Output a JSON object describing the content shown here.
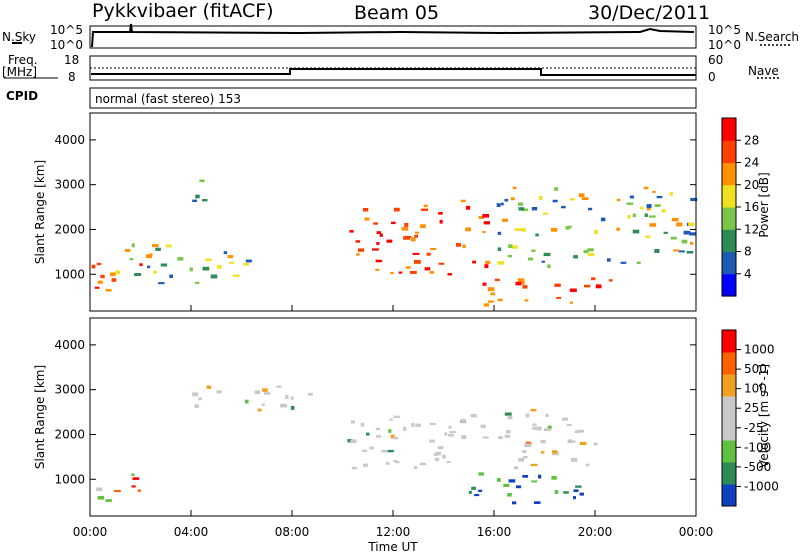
{
  "header": {
    "station": "Pykkvibaer (fitACF)",
    "beam": "Beam 05",
    "date": "30/Dec/2011"
  },
  "top_panels": {
    "nsky_label": "N.Sky",
    "nsky_ticks": [
      "10^5",
      "10^0"
    ],
    "nsearch_label": "N.Search",
    "nsearch_ticks": [
      "10^5",
      "10^0"
    ],
    "freq_label_1": "Freq.",
    "freq_label_2": "[MHz]",
    "freq_ticks": [
      "18",
      "8"
    ],
    "nave_label": "Nave",
    "nave_ticks": [
      "60",
      "0"
    ],
    "cpid_label": "CPID",
    "cpid_text": "normal (fast stereo) 153"
  },
  "chart_data": [
    {
      "type": "heatmap",
      "title": "",
      "xlabel": "",
      "ylabel": "Slant Range [km]",
      "x_ticks": [
        "00:00",
        "04:00",
        "08:00",
        "12:00",
        "16:00",
        "20:00",
        "00:00"
      ],
      "y_ticks": [
        1000,
        2000,
        3000,
        4000
      ],
      "xlim": [
        0,
        24
      ],
      "ylim": [
        180,
        4600
      ],
      "colorbar": {
        "label": "Power [dB]",
        "ticks": [
          "28",
          "24",
          "20",
          "16",
          "12",
          "8",
          "4"
        ],
        "colors": [
          "#0000ff",
          "#1e5ab4",
          "#2e8b57",
          "#7ac64a",
          "#f0e020",
          "#ff9000",
          "#ff4000",
          "#ff0000"
        ]
      },
      "regions": [
        {
          "t0": 0.0,
          "t1": 2.2,
          "r0": 600,
          "r1": 1300,
          "level": "high"
        },
        {
          "t0": 1.0,
          "t1": 6.5,
          "r0": 800,
          "r1": 1700,
          "level": "mid"
        },
        {
          "t0": 4.0,
          "t1": 5.3,
          "r0": 2600,
          "r1": 3200,
          "level": "low"
        },
        {
          "t0": 10.2,
          "t1": 15.8,
          "r0": 1000,
          "r1": 2700,
          "level": "high"
        },
        {
          "t0": 15.5,
          "t1": 21.0,
          "r0": 300,
          "r1": 1000,
          "level": "high"
        },
        {
          "t0": 16.0,
          "t1": 24.0,
          "r0": 1200,
          "r1": 3000,
          "level": "mid"
        }
      ]
    },
    {
      "type": "heatmap",
      "title": "",
      "xlabel": "Time UT",
      "ylabel": "Slant Range [km]",
      "x_ticks": [
        "00:00",
        "04:00",
        "08:00",
        "12:00",
        "16:00",
        "20:00",
        "00:00"
      ],
      "y_ticks": [
        1000,
        2000,
        3000,
        4000
      ],
      "xlim": [
        0,
        24
      ],
      "ylim": [
        180,
        4600
      ],
      "colorbar": {
        "label": "Velocity [m s^-1]",
        "ticks": [
          "1000",
          "500",
          "100",
          "25",
          "-25",
          "-100",
          "-500",
          "-1000"
        ],
        "colors": [
          "#1040c0",
          "#2e8b57",
          "#60c040",
          "#c8c8c8",
          "#c8c8c8",
          "#f0a020",
          "#ff6000",
          "#ff0000"
        ]
      },
      "regions": [
        {
          "t0": 0.0,
          "t1": 2.0,
          "r0": 500,
          "r1": 1200,
          "level": "mixed"
        },
        {
          "t0": 4.0,
          "t1": 9.0,
          "r0": 2500,
          "r1": 3100,
          "level": "gray"
        },
        {
          "t0": 10.0,
          "t1": 20.0,
          "r0": 1200,
          "r1": 2600,
          "level": "gray"
        },
        {
          "t0": 15.0,
          "t1": 20.0,
          "r0": 400,
          "r1": 1200,
          "level": "blue"
        }
      ]
    }
  ]
}
